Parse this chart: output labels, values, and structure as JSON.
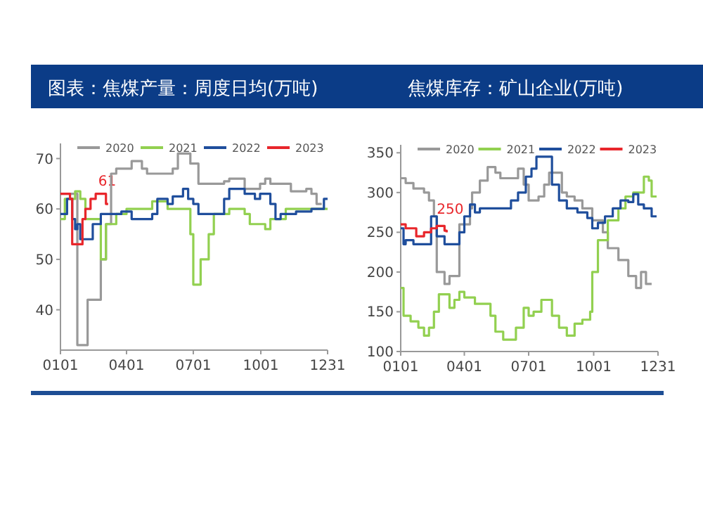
{
  "chart_data": [
    {
      "type": "step",
      "title": "图表：焦煤产量：周度日均(万吨)",
      "legend": "top",
      "xlim": [
        "--01-01",
        "--12-31"
      ],
      "ylim": [
        32,
        73
      ],
      "xticks": [
        {
          "value": "--01-01",
          "label": "0101"
        },
        {
          "value": "--04-01",
          "label": "0401"
        },
        {
          "value": "--07-01",
          "label": "0701"
        },
        {
          "value": "--10-01",
          "label": "1001"
        },
        {
          "value": "--12-31",
          "label": "1231"
        }
      ],
      "yticks": [
        40,
        50,
        60,
        70
      ],
      "series": [
        {
          "name": "2020",
          "color": "#999999",
          "x": [
            "--01-01",
            "--01-21",
            "--01-24",
            "--02-04",
            "--02-07",
            "--02-18",
            "--02-25",
            "--03-04",
            "--03-11",
            "--03-18",
            "--04-01",
            "--04-08",
            "--04-22",
            "--04-29",
            "--05-27",
            "--06-03",
            "--06-10",
            "--06-27",
            "--07-01",
            "--07-08",
            "--07-22",
            "--08-05",
            "--08-12",
            "--08-19",
            "--09-09",
            "--09-23",
            "--09-30",
            "--10-07",
            "--10-14",
            "--11-04",
            "--11-11",
            "--11-25",
            "--12-02",
            "--12-09",
            "--12-16",
            "--12-23"
          ],
          "values": [
            63,
            63,
            33,
            33,
            42,
            42,
            50,
            57,
            67,
            68,
            68,
            69.5,
            68,
            67,
            67,
            68,
            71,
            69,
            69,
            65,
            65,
            65,
            65.5,
            66,
            64,
            64,
            65,
            66,
            65,
            65,
            63.5,
            63.5,
            64,
            63,
            61,
            61
          ]
        },
        {
          "name": "2021",
          "color": "#92d050",
          "x": [
            "--01-01",
            "--01-07",
            "--01-21",
            "--01-28",
            "--02-04",
            "--02-25",
            "--03-04",
            "--03-18",
            "--04-01",
            "--05-06",
            "--05-27",
            "--06-24",
            "--06-27",
            "--07-01",
            "--07-08",
            "--07-11",
            "--07-22",
            "--07-29",
            "--08-19",
            "--09-09",
            "--09-16",
            "--10-07",
            "--10-14",
            "--11-04",
            "--12-02",
            "--12-31"
          ],
          "values": [
            58,
            62,
            63.5,
            62,
            58,
            50,
            57,
            59,
            60,
            61.5,
            60,
            60,
            55,
            45,
            45,
            50,
            55,
            59,
            60,
            59,
            57,
            56,
            58,
            60,
            60,
            60
          ]
        },
        {
          "name": "2022",
          "color": "#1f4e9c",
          "x": [
            "--01-01",
            "--01-10",
            "--01-17",
            "--01-21",
            "--01-24",
            "--01-28",
            "--02-14",
            "--02-25",
            "--03-25",
            "--04-08",
            "--05-06",
            "--05-13",
            "--05-27",
            "--06-03",
            "--06-17",
            "--06-24",
            "--07-01",
            "--07-08",
            "--08-05",
            "--08-12",
            "--08-19",
            "--09-09",
            "--09-23",
            "--09-30",
            "--10-14",
            "--10-21",
            "--10-28",
            "--11-18",
            "--12-09",
            "--12-23",
            "--12-26",
            "--12-31"
          ],
          "values": [
            59,
            62,
            58,
            56,
            57,
            54,
            57,
            59,
            59.5,
            58,
            59,
            62,
            61,
            62.5,
            64,
            62,
            61,
            59,
            59,
            62,
            64,
            63,
            62,
            63,
            61,
            58,
            59,
            59.5,
            60,
            60,
            62,
            62
          ]
        },
        {
          "name": "2023",
          "color": "#e8262b",
          "x": [
            "--01-01",
            "--01-14",
            "--01-17",
            "--01-31",
            "--02-04",
            "--02-11",
            "--02-18",
            "--03-04",
            "--03-07"
          ],
          "values": [
            63,
            62,
            53,
            58,
            60,
            62,
            63,
            61,
            61
          ]
        }
      ],
      "annotations": [
        {
          "text": "61",
          "x": "--03-07",
          "y": 61
        }
      ]
    },
    {
      "type": "step",
      "title": "焦煤库存：矿山企业(万吨)",
      "legend": "top",
      "xlim": [
        "--01-01",
        "--12-31"
      ],
      "ylim": [
        100,
        360
      ],
      "xticks": [
        {
          "value": "--01-01",
          "label": "0101"
        },
        {
          "value": "--04-01",
          "label": "0401"
        },
        {
          "value": "--07-01",
          "label": "0701"
        },
        {
          "value": "--10-01",
          "label": "1001"
        },
        {
          "value": "--12-31",
          "label": "1231"
        }
      ],
      "yticks": [
        100,
        150,
        200,
        250,
        300,
        350
      ],
      "series": [
        {
          "name": "2020",
          "color": "#999999",
          "x": [
            "--01-01",
            "--01-08",
            "--01-19",
            "--02-03",
            "--02-10",
            "--02-17",
            "--02-21",
            "--03-04",
            "--03-11",
            "--03-25",
            "--04-09",
            "--04-12",
            "--04-23",
            "--05-04",
            "--05-15",
            "--05-22",
            "--06-16",
            "--06-24",
            "--07-01",
            "--07-15",
            "--07-23",
            "--07-30",
            "--08-17",
            "--08-24",
            "--09-04",
            "--09-15",
            "--09-29",
            "--10-14",
            "--10-21",
            "--11-05",
            "--11-19",
            "--11-30",
            "--12-07",
            "--12-14",
            "--12-22"
          ],
          "values": [
            318,
            312,
            305,
            300,
            290,
            270,
            200,
            185,
            195,
            260,
            280,
            300,
            315,
            332,
            325,
            318,
            330,
            310,
            290,
            295,
            310,
            325,
            300,
            295,
            290,
            280,
            265,
            250,
            230,
            215,
            195,
            180,
            200,
            185,
            185
          ]
        },
        {
          "name": "2021",
          "color": "#92d050",
          "x": [
            "--01-01",
            "--01-05",
            "--01-15",
            "--01-26",
            "--02-03",
            "--02-10",
            "--02-17",
            "--02-24",
            "--03-11",
            "--03-18",
            "--03-25",
            "--04-01",
            "--04-16",
            "--05-08",
            "--05-15",
            "--05-26",
            "--06-13",
            "--06-24",
            "--07-01",
            "--07-08",
            "--07-19",
            "--08-03",
            "--08-13",
            "--08-24",
            "--09-04",
            "--09-15",
            "--09-26",
            "--09-29",
            "--10-07",
            "--10-21",
            "--11-05",
            "--11-15",
            "--11-26",
            "--12-11",
            "--12-18",
            "--12-22",
            "--12-29"
          ],
          "values": [
            180,
            145,
            138,
            130,
            120,
            130,
            150,
            172,
            155,
            165,
            175,
            168,
            160,
            145,
            125,
            115,
            130,
            155,
            145,
            150,
            165,
            145,
            130,
            120,
            135,
            140,
            150,
            200,
            240,
            265,
            280,
            295,
            300,
            320,
            315,
            295,
            295
          ]
        },
        {
          "name": "2022",
          "color": "#1f4e9c",
          "x": [
            "--01-01",
            "--01-05",
            "--01-08",
            "--01-19",
            "--02-13",
            "--02-21",
            "--03-04",
            "--03-25",
            "--04-01",
            "--04-09",
            "--04-16",
            "--04-23",
            "--06-06",
            "--06-16",
            "--06-27",
            "--07-05",
            "--07-12",
            "--08-03",
            "--08-13",
            "--08-24",
            "--09-08",
            "--09-22",
            "--09-29",
            "--10-07",
            "--10-17",
            "--10-28",
            "--11-08",
            "--11-19",
            "--11-26",
            "--12-03",
            "--12-11",
            "--12-22",
            "--12-29"
          ],
          "values": [
            255,
            235,
            240,
            235,
            270,
            245,
            235,
            250,
            270,
            285,
            275,
            280,
            290,
            300,
            320,
            330,
            345,
            310,
            290,
            280,
            275,
            268,
            255,
            262,
            270,
            280,
            290,
            288,
            298,
            285,
            280,
            270,
            270
          ]
        },
        {
          "name": "2023",
          "color": "#e8262b",
          "x": [
            "--01-01",
            "--01-08",
            "--01-23",
            "--02-03",
            "--02-13",
            "--02-21",
            "--03-04",
            "--03-07"
          ],
          "values": [
            260,
            255,
            245,
            250,
            255,
            258,
            252,
            250
          ]
        }
      ],
      "annotations": [
        {
          "text": "250",
          "x": "--03-07",
          "y": 250
        }
      ]
    }
  ]
}
